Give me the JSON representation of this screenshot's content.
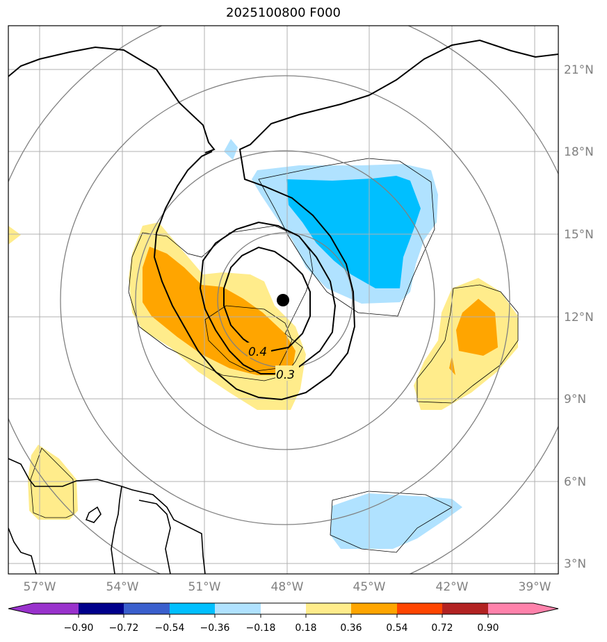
{
  "title": "2025100800 F000",
  "map": {
    "lon_ticks": [
      "57°W",
      "54°W",
      "51°W",
      "48°W",
      "45°W",
      "42°W",
      "39°W"
    ],
    "lat_ticks": [
      "21°N",
      "18°N",
      "15°N",
      "12°N",
      "9°N",
      "6°N",
      "3°N"
    ],
    "lon_range": [
      -58.1,
      -38.2
    ],
    "lat_range": [
      2.6,
      22.4
    ],
    "center_marker": {
      "name": "storm-center",
      "lon": -48.1,
      "lat": 12.6
    },
    "contour_labels": [
      "0.4",
      "0.3"
    ]
  },
  "colorbar": {
    "ticks": [
      "−0.90",
      "−0.72",
      "−0.54",
      "−0.36",
      "−0.18",
      "0.18",
      "0.36",
      "0.54",
      "0.72",
      "0.90"
    ],
    "colors": [
      "#9932CC",
      "#00008B",
      "#3A5FCD",
      "#00BFFF",
      "#B0E2FF",
      "#FFFFFF",
      "#FFEC8B",
      "#FFA500",
      "#FF4500",
      "#B22222",
      "#FF82AB"
    ]
  }
}
